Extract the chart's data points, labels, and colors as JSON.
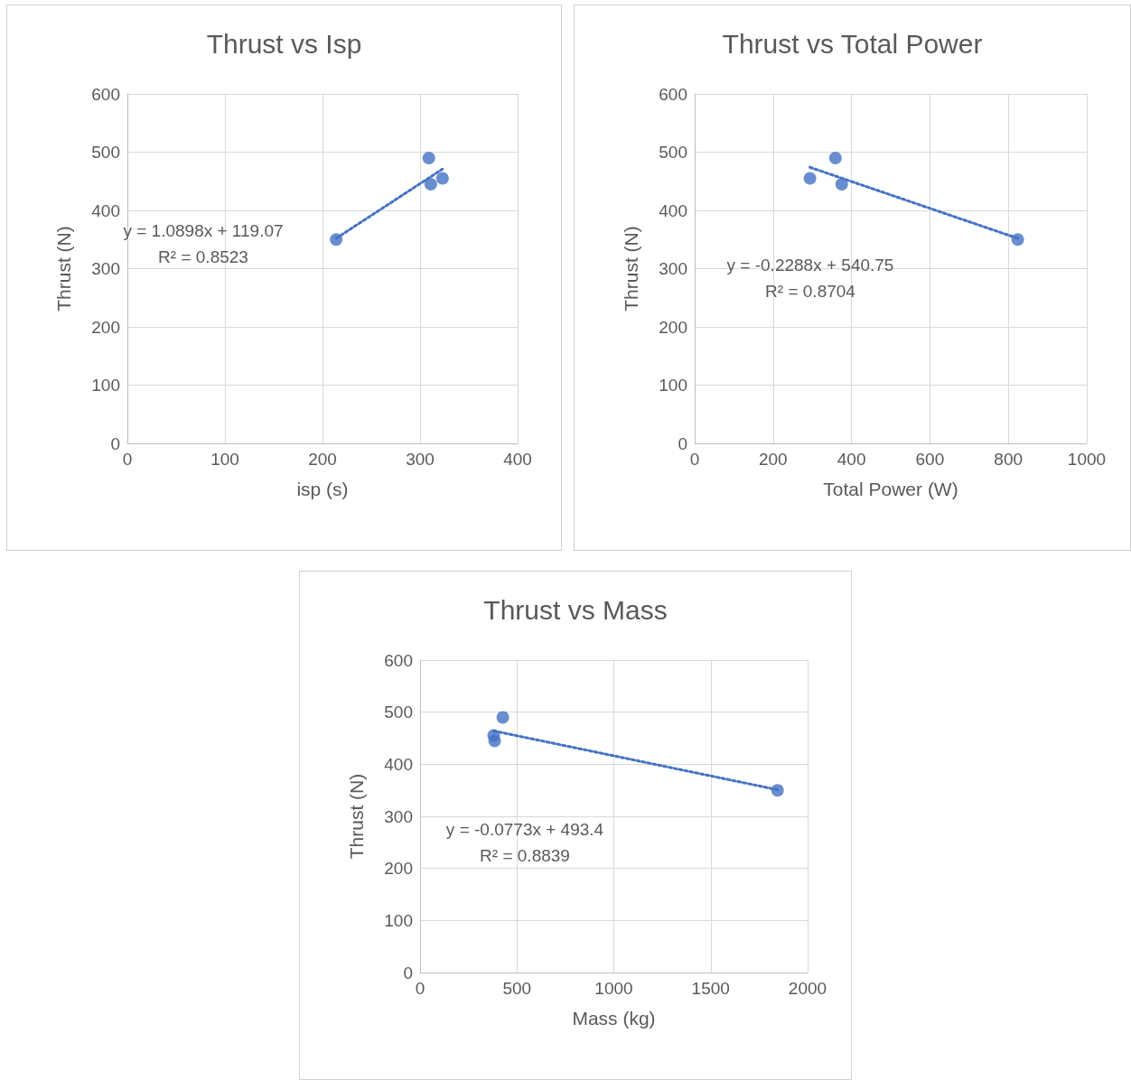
{
  "chart_data": [
    {
      "type": "scatter",
      "title": "Thrust vs Isp",
      "xlabel": "isp (s)",
      "ylabel": "Thrust (N)",
      "xlim": [
        0,
        400
      ],
      "xticks": [
        0,
        100,
        200,
        300,
        400
      ],
      "ylim": [
        0,
        600
      ],
      "yticks": [
        0,
        100,
        200,
        300,
        400,
        500,
        600
      ],
      "grid": true,
      "marker": "circle",
      "annotations": [
        "y = 1.0898x + 119.07",
        "R² = 0.8523"
      ],
      "series": [
        {
          "type": "scatter",
          "color": "#4472c4",
          "x": [
            214,
            309,
            311,
            323
          ],
          "values": [
            350,
            490,
            445,
            455
          ]
        },
        {
          "type": "line",
          "color": "#4472c4",
          "marker": "none",
          "line_style": "dotted",
          "x": [
            214,
            323
          ],
          "values": [
            352,
            471
          ]
        }
      ]
    },
    {
      "type": "scatter",
      "title": "Thrust vs Total Power",
      "xlabel": "Total Power (W)",
      "ylabel": "Thrust (N)",
      "xlim": [
        0,
        1000
      ],
      "xticks": [
        0,
        200,
        400,
        600,
        800,
        {
          "value": 1000,
          "label": "1000"
        }
      ],
      "ylim": [
        0,
        600
      ],
      "yticks": [
        0,
        100,
        200,
        300,
        400,
        500,
        600
      ],
      "grid": true,
      "marker": "circle",
      "annotations": [
        "y = -0.2288x + 540.75",
        "R² = 0.8704"
      ],
      "series": [
        {
          "type": "scatter",
          "color": "#4472c4",
          "x": [
            294,
            359,
            375,
            824
          ],
          "values": [
            455,
            490,
            445,
            350
          ]
        },
        {
          "type": "line",
          "color": "#4472c4",
          "marker": "none",
          "line_style": "dotted",
          "x": [
            294,
            824
          ],
          "values": [
            474,
            352
          ]
        }
      ]
    },
    {
      "type": "scatter",
      "title": "Thrust vs Mass",
      "xlabel": "Mass (kg)",
      "ylabel": "Thrust (N)",
      "xlim": [
        0,
        2000
      ],
      "xticks": [
        0,
        500,
        {
          "value": 1000,
          "label": "1000"
        },
        {
          "value": 1500,
          "label": "1500"
        },
        {
          "value": 2000,
          "label": "2000"
        }
      ],
      "ylim": [
        0,
        600
      ],
      "yticks": [
        0,
        100,
        200,
        300,
        400,
        500,
        600
      ],
      "grid": true,
      "marker": "circle",
      "annotations": [
        "y = -0.0773x + 493.4",
        "R² = 0.8839"
      ],
      "series": [
        {
          "type": "scatter",
          "color": "#4472c4",
          "x": [
            380,
            427,
            385,
            1845
          ],
          "values": [
            455,
            490,
            445,
            350
          ]
        },
        {
          "type": "line",
          "color": "#4472c4",
          "marker": "none",
          "line_style": "dotted",
          "x": [
            380,
            1845
          ],
          "values": [
            464,
            351
          ]
        }
      ]
    }
  ]
}
